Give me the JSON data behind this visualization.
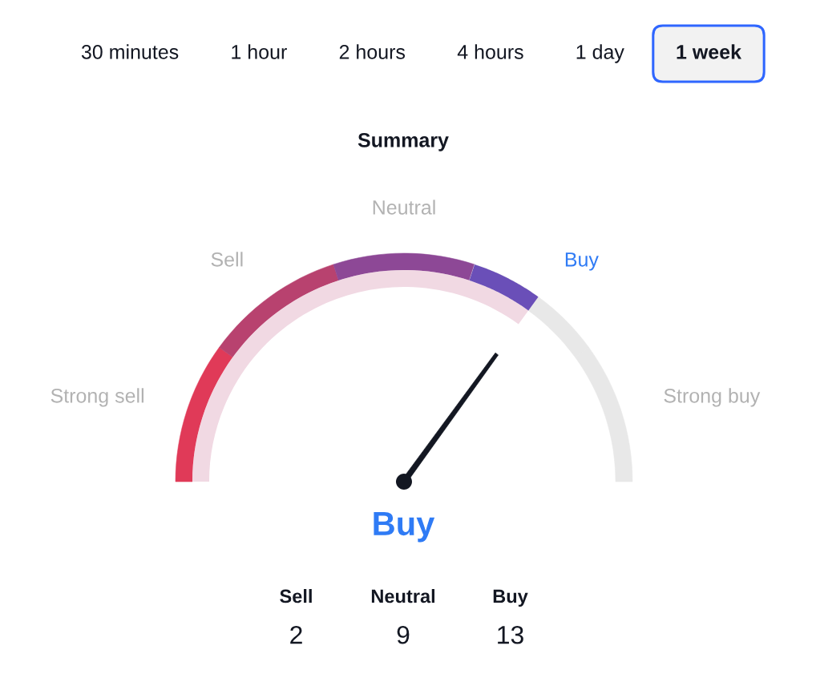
{
  "chart_data": [
    {
      "type": "other",
      "categories": [
        "30 minutes",
        "1 hour",
        "2 hours",
        "4 hours",
        "1 day",
        "1 week"
      ],
      "colors": [
        "#ffffff",
        "#ffffff",
        "#ffffff",
        "#ffffff",
        "#ffffff",
        "#f2f2f2"
      ]
    },
    {
      "type": "donut",
      "title": "Summary",
      "categories": [
        "Strong sell",
        "Sell",
        "Neutral",
        "Buy",
        "Strong buy"
      ],
      "values": [
        20,
        20,
        20,
        20,
        20
      ],
      "colors": [
        "#e03a58",
        "#b8426f",
        "#8d4896",
        "#e8e8e8",
        "#e8e8e8"
      ],
      "needle": "Buy",
      "annotations": [
        "Buy"
      ]
    },
    {
      "type": "other",
      "categories": [
        "Sell",
        "Neutral",
        "Buy"
      ],
      "values": [
        2,
        9,
        13
      ],
      "data_labels": true
    }
  ]
}
